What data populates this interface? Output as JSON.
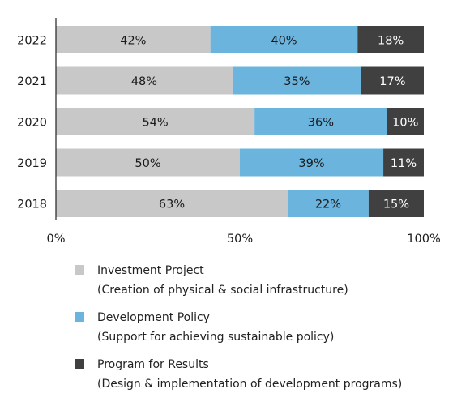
{
  "chart_data": {
    "type": "bar",
    "orientation": "horizontal",
    "stacked": true,
    "categories": [
      "2022",
      "2021",
      "2020",
      "2019",
      "2018"
    ],
    "series": [
      {
        "name": "Investment Project",
        "color": "#c8c8c8",
        "values": [
          42,
          48,
          54,
          50,
          63
        ],
        "labels": [
          "42%",
          "48%",
          "54%",
          "50%",
          "63%"
        ]
      },
      {
        "name": "Development Policy",
        "color": "#6ab4de",
        "values": [
          40,
          35,
          36,
          39,
          22
        ],
        "labels": [
          "40%",
          "35%",
          "36%",
          "39%",
          "22%"
        ]
      },
      {
        "name": "Program for Results",
        "color": "#404040",
        "values": [
          18,
          17,
          10,
          11,
          15
        ],
        "labels": [
          "18%",
          "17%",
          "10%",
          "11%",
          "15%"
        ]
      }
    ],
    "xlim": [
      0,
      100
    ],
    "xticks": [
      "0%",
      "50%",
      "100%"
    ],
    "grid": false,
    "legend_position": "bottom"
  },
  "legend": [
    {
      "title": "Investment Project",
      "subtitle": "(Creation of physical & social infrastructure)",
      "color": "#c8c8c8"
    },
    {
      "title": "Development Policy",
      "subtitle": "(Support for achieving sustainable policy)",
      "color": "#6ab4de"
    },
    {
      "title": "Program for Results",
      "subtitle": "(Design & implementation of development programs)",
      "color": "#404040"
    }
  ]
}
